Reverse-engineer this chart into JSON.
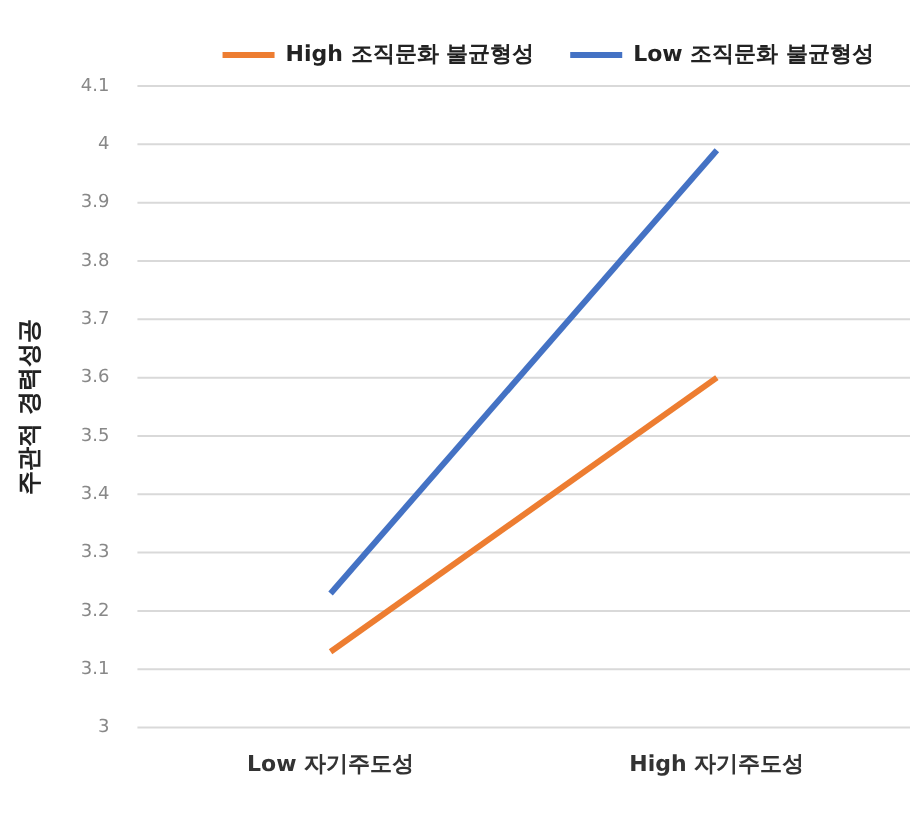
{
  "chart_data": {
    "type": "line",
    "ylabel": "주관적 경력성공",
    "categories": [
      "Low 자기주도성",
      "High 자기주도성"
    ],
    "series": [
      {
        "name": "High 조직문화 불균형성",
        "color": "#ed7d31",
        "values": [
          3.13,
          3.6
        ]
      },
      {
        "name": "Low 조직문화 불균형성",
        "color": "#4472c4",
        "values": [
          3.23,
          3.99
        ]
      }
    ],
    "ylim": [
      3,
      4.1
    ],
    "yticks": [
      3,
      3.1,
      3.2,
      3.3,
      3.4,
      3.5,
      3.6,
      3.7,
      3.8,
      3.9,
      4,
      4.1
    ],
    "grid": "y",
    "legend": "top right",
    "marker": "none",
    "line_style": "solid"
  }
}
